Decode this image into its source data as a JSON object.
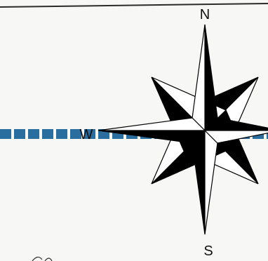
{
  "compass": {
    "north": "N",
    "south": "S",
    "west": "W",
    "ink_color": "#000000",
    "paper_color": "#ffffff"
  },
  "route": {
    "line_color": "#2a6ea0",
    "style": "dashed-thick"
  },
  "top_border_color": "#2b2b2b"
}
